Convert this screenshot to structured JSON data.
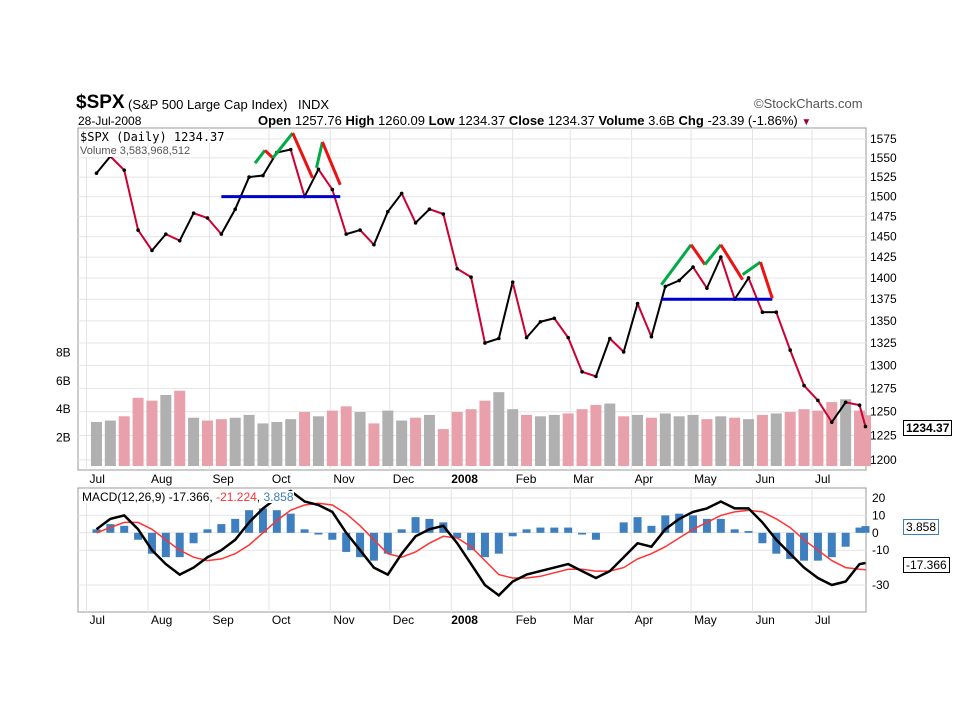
{
  "header": {
    "symbol": "$SPX",
    "name": "(S&P 500 Large Cap Index)",
    "exchange": "INDX",
    "date": "28-Jul-2008",
    "watermark": "©StockCharts.com",
    "open_label": "Open",
    "open": "1257.76",
    "high_label": "High",
    "high": "1260.09",
    "low_label": "Low",
    "low": "1234.37",
    "close_label": "Close",
    "close": "1234.37",
    "volume_label": "Volume",
    "volume": "3.6B",
    "chg_label": "Chg",
    "chg": "-23.39 (-1.86%)"
  },
  "legend": {
    "price": "$SPX (Daily) 1234.37",
    "volume": "Volume 3,583,968,512",
    "macd_name": "MACD(12,26,9)",
    "macd": "-17.366",
    "signal": "-21.224",
    "hist": "3.858"
  },
  "colors": {
    "up": "#000000",
    "down": "#cc0033",
    "volume_up": "#b0b0b0",
    "volume_down": "#e8a0aa",
    "macd": "#000000",
    "signal": "#ff3333",
    "hist": "#3d7fbf",
    "support": "#0000cc",
    "rise": "#00aa44",
    "fall": "#ee1111"
  },
  "chart_data": [
    {
      "type": "line",
      "scale": "log",
      "ylim": [
        1190,
        1590
      ],
      "yticks": [
        1200,
        1225,
        1250,
        1275,
        1300,
        1325,
        1350,
        1375,
        1400,
        1425,
        1450,
        1475,
        1500,
        1525,
        1550,
        1575
      ],
      "volume_ticks": [
        {
          "v": 2,
          "label": "2B"
        },
        {
          "v": 4,
          "label": "4B"
        },
        {
          "v": 6,
          "label": "6B"
        },
        {
          "v": 8,
          "label": "8B"
        }
      ],
      "months": [
        {
          "d": "2007-07-01",
          "label": "Jul"
        },
        {
          "d": "2007-08-01",
          "label": "Aug"
        },
        {
          "d": "2007-09-01",
          "label": "Sep"
        },
        {
          "d": "2007-10-01",
          "label": "Oct"
        },
        {
          "d": "2007-11-01",
          "label": "Nov"
        },
        {
          "d": "2007-12-01",
          "label": "Dec"
        },
        {
          "d": "2008-01-01",
          "label": "2008"
        },
        {
          "d": "2008-02-01",
          "label": "Feb"
        },
        {
          "d": "2008-03-01",
          "label": "Mar"
        },
        {
          "d": "2008-04-01",
          "label": "Apr"
        },
        {
          "d": "2008-05-01",
          "label": "May"
        },
        {
          "d": "2008-06-01",
          "label": "Jun"
        },
        {
          "d": "2008-07-01",
          "label": "Jul"
        }
      ],
      "dates": [
        "2007-07-06",
        "2007-07-13",
        "2007-07-20",
        "2007-07-27",
        "2007-08-03",
        "2007-08-10",
        "2007-08-17",
        "2007-08-24",
        "2007-08-31",
        "2007-09-07",
        "2007-09-14",
        "2007-09-21",
        "2007-09-28",
        "2007-10-05",
        "2007-10-12",
        "2007-10-19",
        "2007-10-26",
        "2007-11-02",
        "2007-11-09",
        "2007-11-16",
        "2007-11-23",
        "2007-11-30",
        "2007-12-07",
        "2007-12-14",
        "2007-12-21",
        "2007-12-28",
        "2008-01-04",
        "2008-01-11",
        "2008-01-18",
        "2008-01-25",
        "2008-02-01",
        "2008-02-08",
        "2008-02-15",
        "2008-02-22",
        "2008-02-29",
        "2008-03-07",
        "2008-03-14",
        "2008-03-21",
        "2008-03-28",
        "2008-04-04",
        "2008-04-11",
        "2008-04-18",
        "2008-04-25",
        "2008-05-02",
        "2008-05-09",
        "2008-05-16",
        "2008-05-23",
        "2008-05-30",
        "2008-06-06",
        "2008-06-13",
        "2008-06-20",
        "2008-06-27",
        "2008-07-04",
        "2008-07-11",
        "2008-07-18",
        "2008-07-25",
        "2008-07-28"
      ],
      "close": [
        1530,
        1552,
        1534,
        1458,
        1433,
        1453,
        1445,
        1479,
        1473,
        1453,
        1484,
        1525,
        1527,
        1557,
        1561,
        1500,
        1535,
        1509,
        1453,
        1458,
        1440,
        1481,
        1504,
        1467,
        1484,
        1478,
        1411,
        1401,
        1325,
        1330,
        1395,
        1331,
        1349,
        1353,
        1331,
        1293,
        1288,
        1330,
        1315,
        1370,
        1332,
        1390,
        1397,
        1413,
        1388,
        1425,
        1375,
        1400,
        1360,
        1360,
        1317,
        1278,
        1262,
        1239,
        1260,
        1257,
        1234.37
      ],
      "volume_b": [
        3.1,
        3.2,
        3.5,
        4.8,
        4.6,
        5.0,
        5.3,
        3.4,
        3.2,
        3.3,
        3.4,
        3.6,
        3.0,
        3.1,
        3.3,
        3.8,
        3.5,
        3.9,
        4.2,
        3.8,
        3.0,
        3.9,
        3.2,
        3.4,
        3.6,
        2.6,
        3.8,
        4.0,
        4.6,
        5.2,
        4.0,
        3.6,
        3.5,
        3.6,
        3.7,
        4.0,
        4.3,
        4.4,
        3.5,
        3.6,
        3.4,
        3.7,
        3.5,
        3.6,
        3.3,
        3.5,
        3.4,
        3.3,
        3.6,
        3.7,
        3.8,
        4.0,
        3.9,
        4.5,
        4.7,
        3.9,
        3.58
      ],
      "annotations": [
        {
          "kind": "support",
          "from": "2007-09-07",
          "to": "2007-11-06",
          "price": 1500
        },
        {
          "kind": "support",
          "from": "2008-04-16",
          "to": "2008-06-11",
          "price": 1375
        },
        {
          "kind": "rise",
          "pts": [
            [
              "2007-09-24",
              1543
            ],
            [
              "2007-09-29",
              1560
            ]
          ]
        },
        {
          "kind": "fall",
          "pts": [
            [
              "2007-09-29",
              1560
            ],
            [
              "2007-10-03",
              1550
            ]
          ]
        },
        {
          "kind": "rise",
          "pts": [
            [
              "2007-10-03",
              1550
            ],
            [
              "2007-10-13",
              1583
            ]
          ]
        },
        {
          "kind": "fall",
          "pts": [
            [
              "2007-10-13",
              1583
            ],
            [
              "2007-10-23",
              1524
            ]
          ]
        },
        {
          "kind": "rise",
          "pts": [
            [
              "2007-10-25",
              1537
            ],
            [
              "2007-10-28",
              1571
            ]
          ]
        },
        {
          "kind": "fall",
          "pts": [
            [
              "2007-10-28",
              1571
            ],
            [
              "2007-11-06",
              1515
            ]
          ]
        },
        {
          "kind": "rise",
          "pts": [
            [
              "2008-04-16",
              1392
            ],
            [
              "2008-05-01",
              1440
            ]
          ]
        },
        {
          "kind": "fall",
          "pts": [
            [
              "2008-05-01",
              1440
            ],
            [
              "2008-05-08",
              1416
            ]
          ]
        },
        {
          "kind": "rise",
          "pts": [
            [
              "2008-05-08",
              1416
            ],
            [
              "2008-05-16",
              1440
            ]
          ]
        },
        {
          "kind": "fall",
          "pts": [
            [
              "2008-05-16",
              1440
            ],
            [
              "2008-05-27",
              1398
            ]
          ]
        },
        {
          "kind": "rise",
          "pts": [
            [
              "2008-05-27",
              1404
            ],
            [
              "2008-06-05",
              1419
            ]
          ]
        },
        {
          "kind": "fall",
          "pts": [
            [
              "2008-06-05",
              1419
            ],
            [
              "2008-06-11",
              1376
            ]
          ]
        }
      ]
    },
    {
      "type": "line",
      "ylim": [
        -35,
        22
      ],
      "yticks": [
        20,
        10,
        0,
        -10,
        -30
      ],
      "macd": [
        2,
        8,
        10,
        2,
        -10,
        -18,
        -24,
        -20,
        -14,
        -10,
        -4,
        6,
        14,
        20,
        24,
        18,
        16,
        12,
        0,
        -10,
        -20,
        -24,
        -12,
        -2,
        2,
        4,
        -6,
        -18,
        -30,
        -36,
        -28,
        -24,
        -22,
        -20,
        -18,
        -22,
        -26,
        -22,
        -14,
        -6,
        -8,
        2,
        8,
        12,
        14,
        18,
        14,
        14,
        6,
        -4,
        -12,
        -20,
        -26,
        -30,
        -28,
        -18,
        -17.366
      ],
      "signal": [
        0,
        3,
        6,
        6,
        2,
        -4,
        -10,
        -14,
        -16,
        -15,
        -12,
        -7,
        0,
        7,
        13,
        16,
        17,
        16,
        11,
        4,
        -4,
        -12,
        -14,
        -11,
        -6,
        -2,
        -3,
        -8,
        -16,
        -24,
        -26,
        -26,
        -25,
        -23,
        -21,
        -21,
        -22,
        -22,
        -20,
        -15,
        -12,
        -8,
        -3,
        2,
        6,
        10,
        12,
        13,
        12,
        8,
        3,
        -4,
        -10,
        -16,
        -20,
        -21,
        -21.224
      ]
    }
  ]
}
